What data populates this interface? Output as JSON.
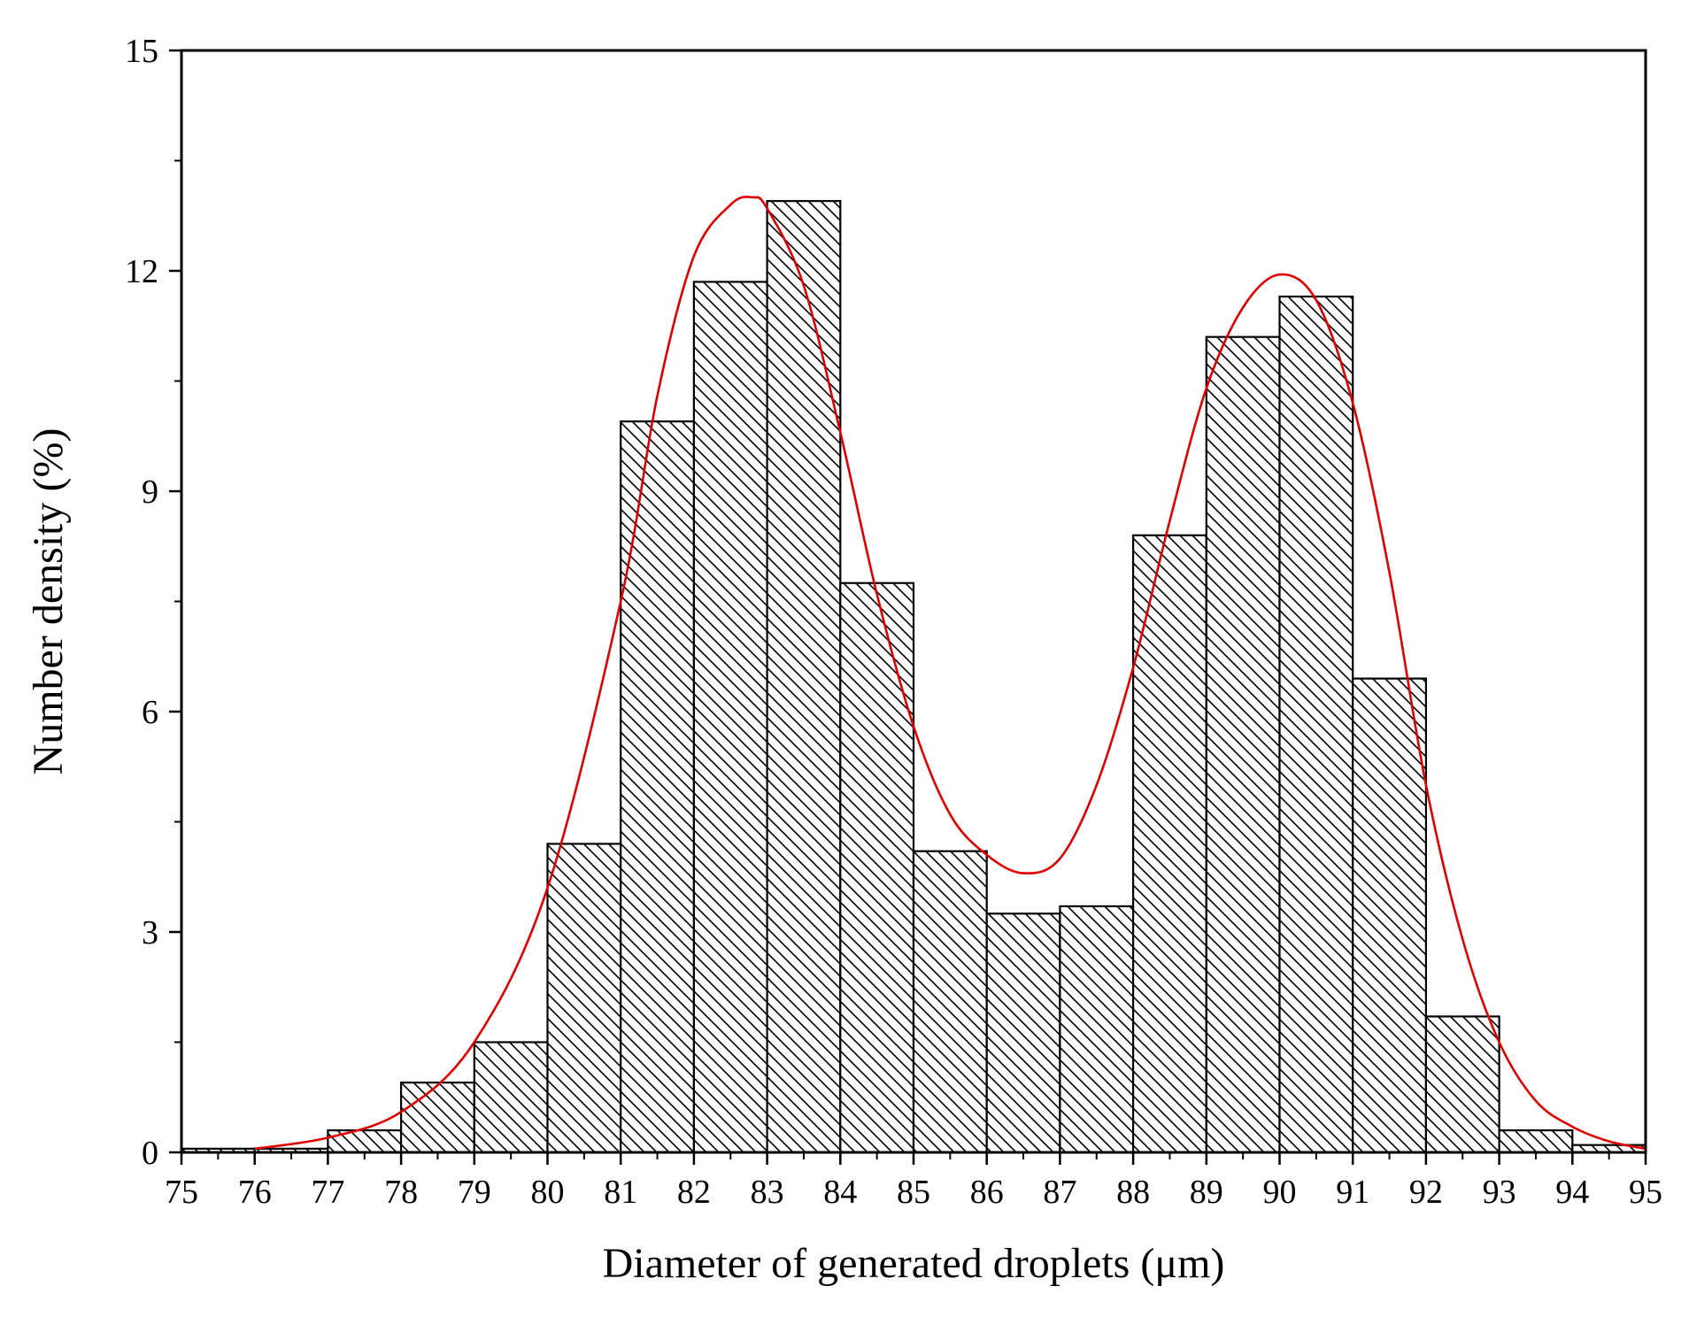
{
  "chart_data": {
    "type": "bar",
    "subtype": "histogram",
    "title": "",
    "xlabel": "Diameter of generated droplets (μm)",
    "ylabel": "Number density (%)",
    "xlim": [
      75,
      95
    ],
    "ylim": [
      0,
      15
    ],
    "x_ticks": [
      "75",
      "76",
      "77",
      "78",
      "79",
      "80",
      "81",
      "82",
      "83",
      "84",
      "85",
      "86",
      "87",
      "88",
      "89",
      "90",
      "91",
      "92",
      "93",
      "94",
      "95"
    ],
    "y_ticks": [
      "0",
      "3",
      "6",
      "9",
      "12",
      "15"
    ],
    "bin_edges": [
      75,
      76,
      77,
      78,
      79,
      80,
      81,
      82,
      83,
      84,
      85,
      86,
      87,
      88,
      89,
      90,
      91,
      92,
      93,
      94,
      95
    ],
    "values": [
      0.05,
      0.05,
      0.3,
      0.95,
      1.5,
      4.2,
      9.95,
      11.85,
      12.95,
      7.75,
      4.1,
      3.25,
      3.35,
      8.4,
      11.1,
      11.65,
      6.45,
      1.85,
      0.3,
      0.1
    ],
    "bar_fill": "#ffffff",
    "bar_hatch": "diagonal-backslash",
    "fit_curve": {
      "type": "line",
      "description": "bimodal fit",
      "color": "#e00000",
      "x": [
        76,
        77,
        78,
        79,
        80,
        81,
        81.5,
        82,
        82.5,
        82.8,
        83,
        83.5,
        84,
        84.5,
        85,
        85.5,
        86,
        86.5,
        87,
        87.5,
        88,
        88.5,
        89,
        89.5,
        90,
        90.5,
        91,
        91.5,
        92,
        92.5,
        93,
        93.5,
        94,
        94.5,
        95
      ],
      "y": [
        0.05,
        0.2,
        0.55,
        1.5,
        3.6,
        7.5,
        10.3,
        12.2,
        12.9,
        13.0,
        12.85,
        11.8,
        9.8,
        7.6,
        5.8,
        4.6,
        4.05,
        3.8,
        4.0,
        5.0,
        6.6,
        8.6,
        10.4,
        11.5,
        11.95,
        11.6,
        10.2,
        7.9,
        5.0,
        2.9,
        1.5,
        0.7,
        0.35,
        0.15,
        0.05
      ]
    }
  }
}
